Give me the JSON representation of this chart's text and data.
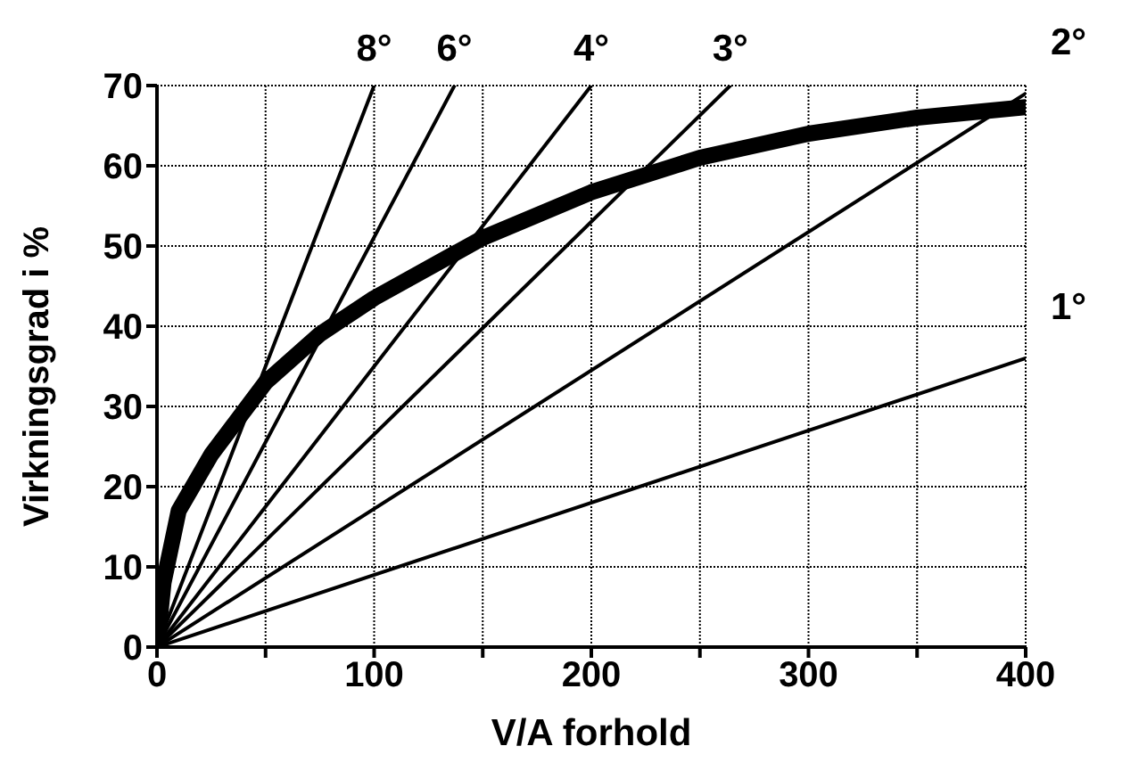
{
  "chart_data": {
    "type": "line",
    "xlabel": "V/A forhold",
    "ylabel": "Virkningsgrad i %",
    "xlim": [
      0,
      400
    ],
    "ylim": [
      0,
      70
    ],
    "xticks": [
      0,
      {
        "value": 50,
        "label": null
      },
      100,
      {
        "value": 150,
        "label": null
      },
      200,
      {
        "value": 250,
        "label": null
      },
      300,
      {
        "value": 350,
        "label": null
      },
      400
    ],
    "yticks": [
      0,
      10,
      20,
      30,
      40,
      50,
      60,
      70
    ],
    "grid": true,
    "legend": false,
    "marker": "none",
    "line_style": "solid",
    "series": [
      {
        "color": "#000000",
        "x": [
          0,
          3,
          10,
          25,
          50,
          75,
          100,
          150,
          200,
          250,
          300,
          350,
          400
        ],
        "values": [
          0,
          8,
          17,
          24,
          33,
          39,
          43.5,
          51,
          56.7,
          61,
          64,
          66,
          67.3
        ]
      },
      {
        "name": "8°",
        "color": "#000000",
        "x": [
          0,
          100
        ],
        "values": [
          0,
          70
        ]
      },
      {
        "name": "6°",
        "color": "#000000",
        "x": [
          0,
          137
        ],
        "values": [
          0,
          70
        ]
      },
      {
        "name": "4°",
        "color": "#000000",
        "x": [
          0,
          200
        ],
        "values": [
          0,
          70
        ]
      },
      {
        "name": "3°",
        "color": "#000000",
        "x": [
          0,
          264
        ],
        "values": [
          0,
          70
        ]
      },
      {
        "name": "2°",
        "color": "#000000",
        "x": [
          0,
          400
        ],
        "values": [
          0,
          69
        ]
      },
      {
        "name": "1°",
        "color": "#000000",
        "x": [
          0,
          400
        ],
        "values": [
          0,
          36
        ]
      }
    ]
  }
}
